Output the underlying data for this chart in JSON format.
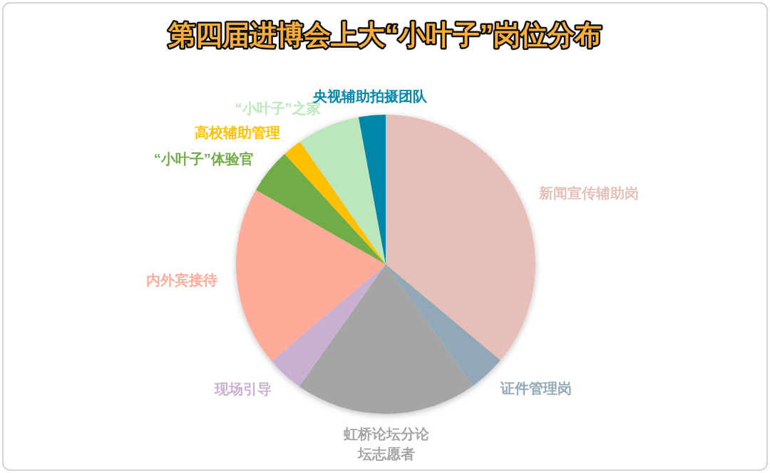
{
  "chart_data": {
    "type": "pie",
    "title": "第四届进博会上大“小叶子”岗位分布",
    "categories": [
      "新闻宣传辅助岗",
      "证件管理岗",
      "虹桥论坛分论坛志愿者",
      "现场引导",
      "内外宾接待",
      "“小叶子”体验官",
      "高校辅助管理",
      "“小叶子”之家",
      "央视辅助拍摄团队"
    ],
    "values": [
      36.1,
      4.0,
      19.7,
      4.0,
      19.5,
      4.9,
      2.1,
      6.8,
      2.9
    ],
    "colors": [
      "#e6c0b8",
      "#91a9b6",
      "#a5a5a5",
      "#c9b0d0",
      "#ffab9a",
      "#70ad47",
      "#ffc000",
      "#bce6bb",
      "#0086a8"
    ]
  }
}
